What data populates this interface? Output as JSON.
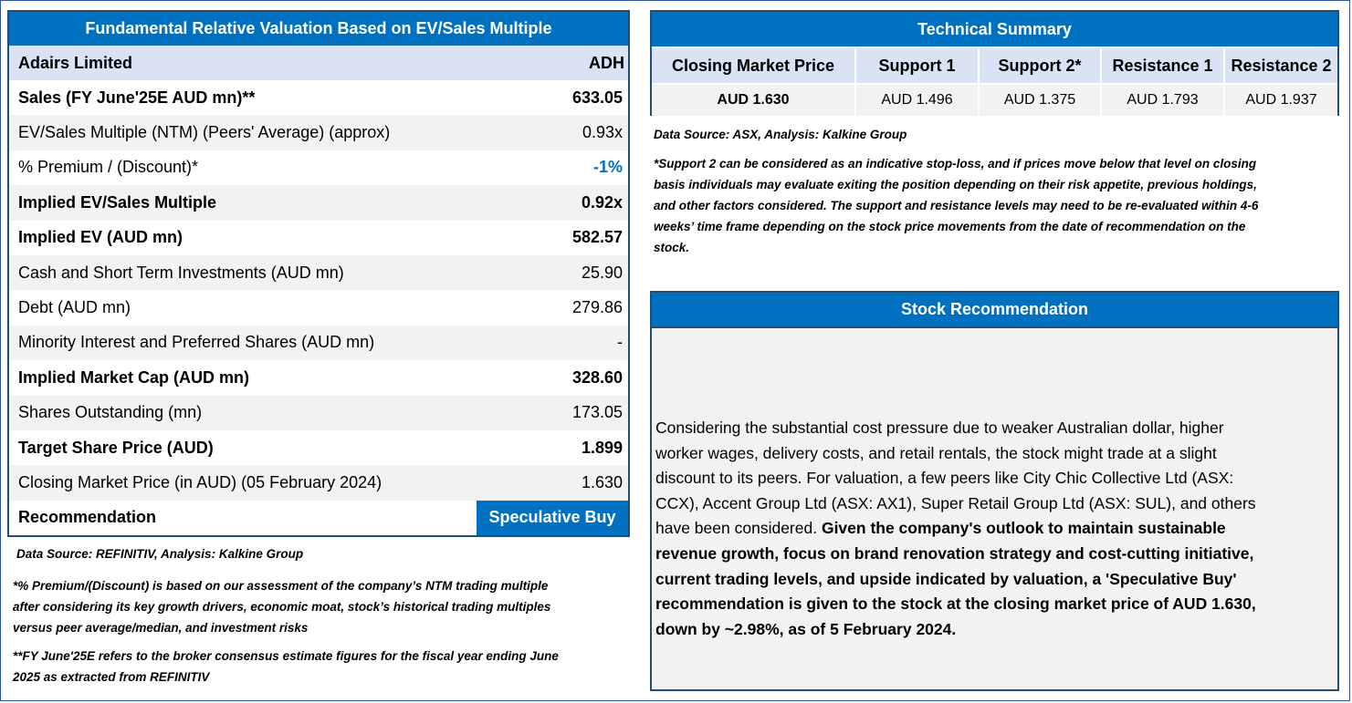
{
  "valuation": {
    "title": "Fundamental Relative Valuation Based on EV/Sales Multiple",
    "company": "Adairs Limited",
    "ticker": "ADH",
    "rows": [
      {
        "label": "Sales (FY June'25E AUD mn)**",
        "value": "633.05",
        "bold": true,
        "shade": false
      },
      {
        "label": "EV/Sales Multiple (NTM)  (Peers' Average) (approx)",
        "value": "0.93x",
        "bold": false,
        "shade": true
      },
      {
        "label": "% Premium / (Discount)*",
        "value": "-1%",
        "bold": false,
        "shade": false,
        "blue": true
      },
      {
        "label": "Implied EV/Sales Multiple",
        "value": "0.92x",
        "bold": true,
        "shade": true
      },
      {
        "label": "Implied EV (AUD mn)",
        "value": "582.57",
        "bold": true,
        "shade": false
      },
      {
        "label": "Cash and Short Term Investments (AUD mn)",
        "value": "25.90",
        "bold": false,
        "shade": true
      },
      {
        "label": "Debt (AUD mn)",
        "value": "279.86",
        "bold": false,
        "shade": false
      },
      {
        "label": "Minority Interest and Preferred Shares (AUD mn)",
        "value": "-",
        "bold": false,
        "shade": true
      },
      {
        "label": "Implied Market Cap (AUD mn)",
        "value": "328.60",
        "bold": true,
        "shade": false
      },
      {
        "label": "Shares Outstanding (mn)",
        "value": "173.05",
        "bold": false,
        "shade": true
      },
      {
        "label": "Target Share Price (AUD)",
        "value": "1.899",
        "bold": true,
        "shade": false
      },
      {
        "label": "Closing Market Price (in AUD) (05 February 2024)",
        "value": "1.630",
        "bold": false,
        "shade": true
      }
    ],
    "recommendation_label": "Recommendation",
    "recommendation_value": "Speculative Buy",
    "source": "Data Source: REFINITIV, Analysis: Kalkine Group",
    "note1_line1": "*% Premium/(Discount) is based on our assessment of the company’s NTM trading multiple",
    "note1_line2": "after considering its key growth drivers, economic moat, stock’s historical trading multiples",
    "note1_line3": "versus peer average/median, and investment risks",
    "note2_line1": "**FY June'25E refers to the broker consensus estimate figures for the fiscal year ending June",
    "note2_line2": "2025  as extracted from REFINITIV"
  },
  "technical": {
    "title": "Technical Summary",
    "headers": [
      "Closing Market Price",
      "Support 1",
      "Support 2*",
      "Resistance 1",
      "Resistance 2"
    ],
    "values": [
      "AUD 1.630",
      "AUD 1.496",
      "AUD 1.375",
      "AUD 1.793",
      "AUD 1.937"
    ],
    "source": "Data Source: ASX, Analysis: Kalkine Group",
    "note_line1": "*Support 2 can be considered as an indicative stop-loss, and if prices move below that level on closing",
    "note_line2": "basis individuals may evaluate exiting the position depending on their risk appetite, previous holdings,",
    "note_line3": "and other factors considered. The support and resistance levels may need to be re-evaluated within 4-6",
    "note_line4": "weeks’ time frame depending on the stock price movements from the date of recommendation on the",
    "note_line5": "stock."
  },
  "stock_recommendation": {
    "title": "Stock Recommendation",
    "line1": "Considering the substantial cost pressure due to weaker Australian dollar, higher",
    "line2": "worker wages, delivery costs, and retail rentals, the stock might trade at a slight",
    "line3": "discount to its peers. For valuation, a few peers like City Chic Collective Ltd (ASX:",
    "line4": "CCX), Accent Group Ltd (ASX: AX1), Super Retail Group Ltd (ASX: SUL), and others",
    "line5": "have been considered. ",
    "bold1": "Given the company's outlook to maintain sustainable",
    "bold2": "revenue growth, focus on brand renovation strategy and cost-cutting initiative,",
    "bold3": "current trading levels, and upside indicated by valuation, a 'Speculative Buy'",
    "bold4": "recommendation is given to the stock at the closing market price of AUD 1.630,",
    "bold5": "down by ~2.98%, as of 5 February 2024."
  },
  "colors": {
    "header_blue": "#0070c0",
    "border_navy": "#1f4e79",
    "subheader": "#dae3f3",
    "shade": "#f2f2f2"
  }
}
